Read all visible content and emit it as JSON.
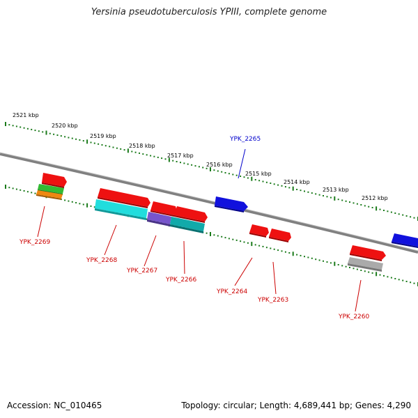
{
  "title": "Yersinia pseudotuberculosis YPIII, complete genome",
  "footer": {
    "accession": "Accession: NC_010465",
    "topology": "Topology: circular; Length: 4,689,441 bp; Genes: 4,290"
  },
  "colors": {
    "backbone": "#808080",
    "tick": "#1a7a1a",
    "label_red": "#cc0000",
    "label_blue": "#0000cc"
  },
  "kbp_labels": [
    "2521 kbp",
    "2520 kbp",
    "2519 kbp",
    "2518 kbp",
    "2517 kbp",
    "2516 kbp",
    "2515 kbp",
    "2514 kbp",
    "2513 kbp",
    "2512 kbp"
  ],
  "genes": [
    {
      "id": "YPK_2269",
      "color": "#cc0000"
    },
    {
      "id": "YPK_2268",
      "color": "#cc0000"
    },
    {
      "id": "YPK_2267",
      "color": "#cc0000"
    },
    {
      "id": "YPK_2266",
      "color": "#cc0000"
    },
    {
      "id": "YPK_2265",
      "color": "#0000cc"
    },
    {
      "id": "YPK_2264",
      "color": "#cc0000"
    },
    {
      "id": "YPK_2263",
      "color": "#cc0000"
    },
    {
      "id": "YPK_2260",
      "color": "#cc0000"
    }
  ],
  "feature_colors": {
    "red": "#ee1111",
    "blue": "#1111dd",
    "cyan": "#22dddd",
    "teal": "#11aaaa",
    "purple": "#7755cc",
    "green": "#33bb33",
    "orange": "#ee8811",
    "gray": "#aaaaaa"
  }
}
